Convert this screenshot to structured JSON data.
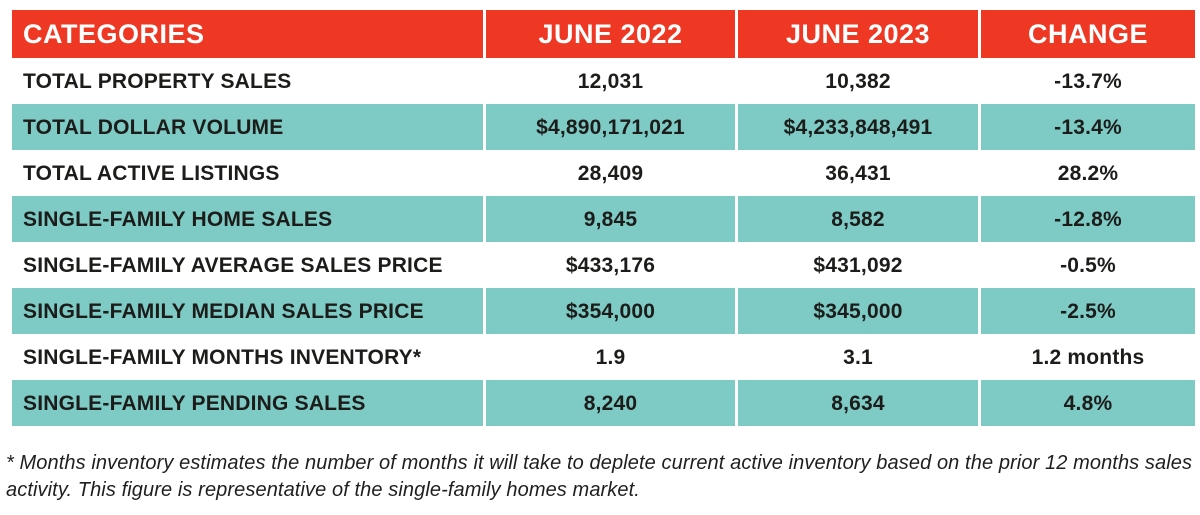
{
  "chart_data": {
    "type": "table",
    "title": "",
    "columns": [
      "CATEGORIES",
      "JUNE 2022",
      "JUNE 2023",
      "CHANGE"
    ],
    "rows": [
      [
        "TOTAL PROPERTY SALES",
        "12,031",
        "10,382",
        "-13.7%"
      ],
      [
        "TOTAL DOLLAR VOLUME",
        "$4,890,171,021",
        "$4,233,848,491",
        "-13.4%"
      ],
      [
        "TOTAL ACTIVE LISTINGS",
        "28,409",
        "36,431",
        "28.2%"
      ],
      [
        "SINGLE-FAMILY HOME SALES",
        "9,845",
        "8,582",
        "-12.8%"
      ],
      [
        "SINGLE-FAMILY AVERAGE SALES PRICE",
        "$433,176",
        "$431,092",
        "-0.5%"
      ],
      [
        "SINGLE-FAMILY MEDIAN SALES PRICE",
        "$354,000",
        "$345,000",
        "-2.5%"
      ],
      [
        "SINGLE-FAMILY MONTHS INVENTORY*",
        "1.9",
        "3.1",
        "1.2 months"
      ],
      [
        "SINGLE-FAMILY PENDING SALES",
        "8,240",
        "8,634",
        "4.8%"
      ]
    ],
    "layout": {
      "header_background": "#EE3824",
      "alternate_row_background": "#7ECAC4",
      "plain_row_background": "#FFFFFF",
      "header_text_color": "#FFFFFF",
      "body_text_color": "#1C1C1A",
      "column_divider_color": "#FFFFFF",
      "teal_rows": [
        2,
        4,
        6,
        8
      ]
    }
  },
  "footnote": {
    "text": "* Months inventory estimates the number of months it will take to deplete current active inventory based on the prior 12 months sales activity. This figure is representative of the single-family homes market."
  }
}
